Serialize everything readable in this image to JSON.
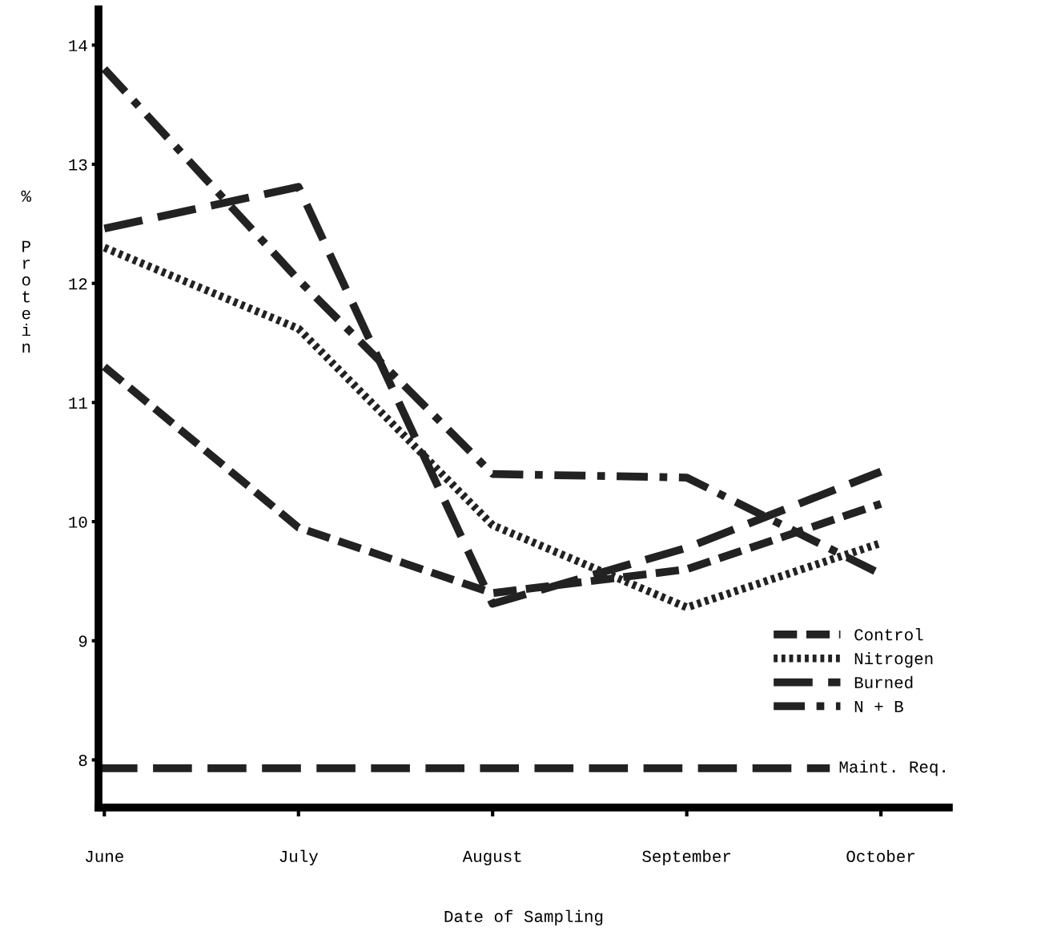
{
  "chart_data": {
    "type": "line",
    "xlabel": "Date of Sampling",
    "ylabel": "% Protein",
    "categories": [
      "June",
      "July",
      "August",
      "September",
      "October"
    ],
    "series": [
      {
        "name": "Control",
        "color": "#222222",
        "line_style": "dashed",
        "values": [
          11.3,
          9.95,
          9.4,
          9.6,
          10.15
        ]
      },
      {
        "name": "Nitrogen",
        "color": "#222222",
        "line_style": "dotted",
        "values": [
          12.3,
          11.62,
          9.97,
          9.28,
          9.82
        ]
      },
      {
        "name": "Burned",
        "color": "#222222",
        "line_style": "longdash",
        "values": [
          12.46,
          12.81,
          9.31,
          9.78,
          10.42
        ]
      },
      {
        "name": "N + B",
        "color": "#222222",
        "line_style": "dashdot",
        "values": [
          13.8,
          12.03,
          10.4,
          10.37,
          9.56
        ]
      }
    ],
    "ref_lines": [
      {
        "axis": "y",
        "value": 7.93,
        "label": "Maint. Req.",
        "color": "#222222",
        "line_style": "longdash"
      }
    ],
    "ylim": [
      7.6,
      14.3
    ],
    "yticks": [
      8,
      9,
      10,
      11,
      12,
      13,
      14
    ],
    "grid": false,
    "legend": "right",
    "marker": "none"
  }
}
